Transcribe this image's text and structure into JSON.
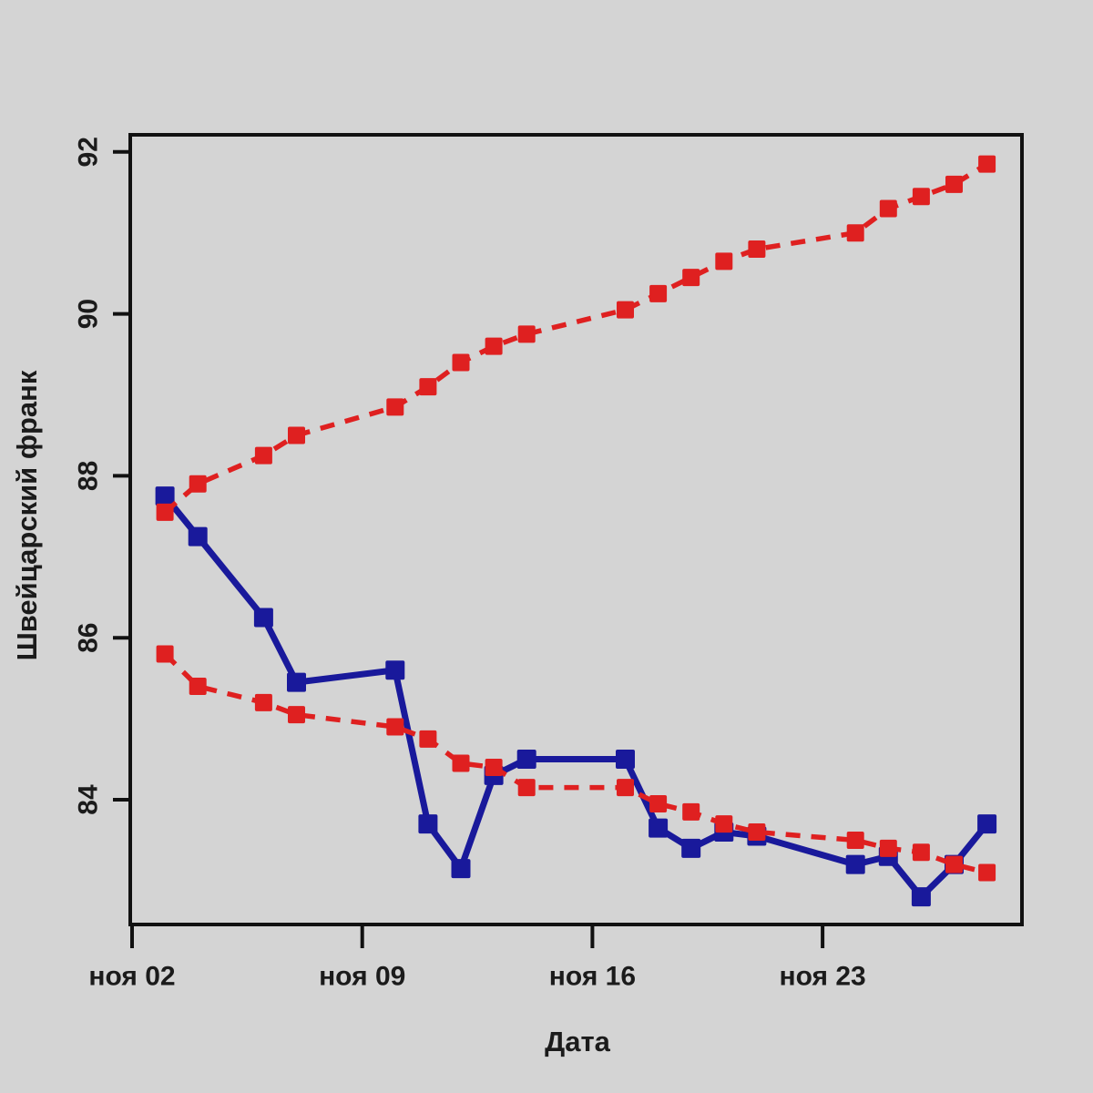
{
  "figure": {
    "background_color": "#d4d4d4",
    "frame_color": "#111111",
    "text_color": "#1b1b1b"
  },
  "chart_data": {
    "type": "line",
    "title": "",
    "xlabel": "Дата",
    "ylabel": "Швейцарский франк",
    "x_dates": [
      "ноя 03",
      "ноя 04",
      "ноя 06",
      "ноя 07",
      "ноя 10",
      "ноя 11",
      "ноя 12",
      "ноя 13",
      "ноя 14",
      "ноя 17",
      "ноя 18",
      "ноя 19",
      "ноя 20",
      "ноя 21",
      "ноя 24",
      "ноя 25",
      "ноя 26",
      "ноя 27",
      "ноя 28"
    ],
    "x_days": [
      3,
      4,
      6,
      7,
      10,
      11,
      12,
      13,
      14,
      17,
      18,
      19,
      20,
      21,
      24,
      25,
      26,
      27,
      28
    ],
    "series": [
      {
        "name": "blue-solid",
        "color": "#19199b",
        "style": "solid",
        "marker": "square",
        "values": [
          87.75,
          87.25,
          86.25,
          85.45,
          85.6,
          83.7,
          83.15,
          84.3,
          84.5,
          84.5,
          83.65,
          83.4,
          83.6,
          83.55,
          83.2,
          83.3,
          82.8,
          83.2,
          83.7
        ]
      },
      {
        "name": "red-dashed-upper",
        "color": "#df2020",
        "style": "dashed",
        "marker": "square",
        "values": [
          87.55,
          87.9,
          88.25,
          88.5,
          88.85,
          89.1,
          89.4,
          89.6,
          89.75,
          90.05,
          90.25,
          90.45,
          90.65,
          90.8,
          91.0,
          91.3,
          91.45,
          91.6,
          91.85
        ]
      },
      {
        "name": "red-dashed-lower",
        "color": "#df2020",
        "style": "dashed",
        "marker": "square",
        "values": [
          85.8,
          85.4,
          85.2,
          85.05,
          84.9,
          84.75,
          84.45,
          84.4,
          84.15,
          84.15,
          83.95,
          83.85,
          83.7,
          83.6,
          83.5,
          83.4,
          83.35,
          83.2,
          83.1
        ]
      }
    ],
    "y_ticks": [
      84,
      86,
      88,
      90,
      92
    ],
    "x_ticks": [
      {
        "label": "ноя 02",
        "day": 2
      },
      {
        "label": "ноя 09",
        "day": 9
      },
      {
        "label": "ноя 16",
        "day": 16
      },
      {
        "label": "ноя 23",
        "day": 23
      }
    ],
    "ylim": [
      82.5,
      92.2
    ],
    "grid": false,
    "legend": "none"
  }
}
